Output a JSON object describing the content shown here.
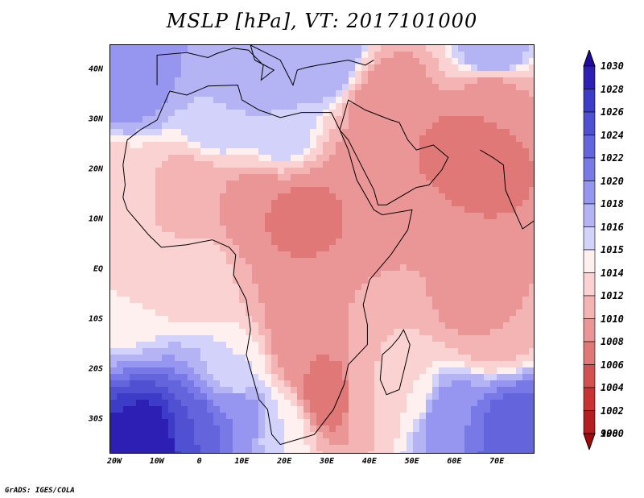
{
  "title": "MSLP [hPa], VT: 2017101000",
  "credit": "GrADS: IGES/COLA",
  "map": {
    "lon_range": [
      -20,
      80
    ],
    "lat_range": [
      -37,
      45
    ],
    "lat_ticks": [
      {
        "lat": 40,
        "label": "40N"
      },
      {
        "lat": 30,
        "label": "30N"
      },
      {
        "lat": 20,
        "label": "20N"
      },
      {
        "lat": 10,
        "label": "10N"
      },
      {
        "lat": 0,
        "label": "EQ"
      },
      {
        "lat": -10,
        "label": "10S"
      },
      {
        "lat": -20,
        "label": "20S"
      },
      {
        "lat": -30,
        "label": "30S"
      }
    ],
    "lon_ticks": [
      {
        "lon": -20,
        "label": "20W"
      },
      {
        "lon": -10,
        "label": "10W"
      },
      {
        "lon": 0,
        "label": "0"
      },
      {
        "lon": 10,
        "label": "10E"
      },
      {
        "lon": 20,
        "label": "20E"
      },
      {
        "lon": 30,
        "label": "30E"
      },
      {
        "lon": 40,
        "label": "40E"
      },
      {
        "lon": 50,
        "label": "50E"
      },
      {
        "lon": 60,
        "label": "60E"
      },
      {
        "lon": 70,
        "label": "70E"
      }
    ]
  },
  "colorbar": {
    "levels": [
      "1030",
      "1028",
      "1026",
      "1024",
      "1022",
      "1020",
      "1018",
      "1016",
      "1015",
      "1014",
      "1012",
      "1010",
      "1008",
      "1006",
      "1004",
      "1002",
      "1000",
      "998"
    ],
    "colors": [
      "#1e0aa0",
      "#2d1eb4",
      "#3c3cc8",
      "#5050d2",
      "#6464dc",
      "#7878e6",
      "#9696f0",
      "#b4b4f5",
      "#d2d2fa",
      "#fff0f0",
      "#fad2d2",
      "#f5b4b4",
      "#eb9696",
      "#e07878",
      "#d25050",
      "#c83232",
      "#b41e1e",
      "#a00a0a"
    ]
  },
  "pressure_cells": [
    {
      "lon": -10,
      "lat": -35,
      "hPa": 1030
    },
    {
      "lon": 0,
      "lat": -33,
      "hPa": 1024
    },
    {
      "lon": 10,
      "lat": -30,
      "hPa": 1020
    },
    {
      "lon": 60,
      "lat": -30,
      "hPa": 1020
    },
    {
      "lon": 75,
      "lat": -33,
      "hPa": 1024
    },
    {
      "lon": -15,
      "lat": 40,
      "hPa": 1020
    },
    {
      "lon": 15,
      "lat": 42,
      "hPa": 1018
    },
    {
      "lon": 30,
      "lat": 43,
      "hPa": 1018
    },
    {
      "lon": 70,
      "lat": 43,
      "hPa": 1018
    },
    {
      "lon": 5,
      "lat": 30,
      "hPa": 1016
    },
    {
      "lon": 20,
      "lat": 28,
      "hPa": 1016
    },
    {
      "lon": -18,
      "lat": 15,
      "hPa": 1013
    },
    {
      "lon": -15,
      "lat": -5,
      "hPa": 1014
    },
    {
      "lon": 0,
      "lat": 0,
      "hPa": 1013
    },
    {
      "lon": 0,
      "lat": 15,
      "hPa": 1010
    },
    {
      "lon": 15,
      "lat": 12,
      "hPa": 1008
    },
    {
      "lon": 25,
      "lat": 10,
      "hPa": 1007
    },
    {
      "lon": 35,
      "lat": 12,
      "hPa": 1008
    },
    {
      "lon": 45,
      "lat": 20,
      "hPa": 1008
    },
    {
      "lon": 45,
      "lat": 32,
      "hPa": 1008
    },
    {
      "lon": 65,
      "lat": 22,
      "hPa": 1006
    },
    {
      "lon": 70,
      "lat": 35,
      "hPa": 1008
    },
    {
      "lon": 55,
      "lat": 5,
      "hPa": 1010
    },
    {
      "lon": 65,
      "lat": -5,
      "hPa": 1009
    },
    {
      "lon": 70,
      "lat": -10,
      "hPa": 1010
    },
    {
      "lon": 25,
      "lat": -5,
      "hPa": 1009
    },
    {
      "lon": 25,
      "lat": -15,
      "hPa": 1008
    },
    {
      "lon": 32,
      "lat": -25,
      "hPa": 1006
    },
    {
      "lon": 45,
      "lat": -15,
      "hPa": 1012
    },
    {
      "lon": 40,
      "lat": -25,
      "hPa": 1012
    },
    {
      "lon": 50,
      "lat": -25,
      "hPa": 1014
    },
    {
      "lon": 10,
      "lat": -20,
      "hPa": 1015
    },
    {
      "lon": 20,
      "lat": -32,
      "hPa": 1015
    }
  ]
}
